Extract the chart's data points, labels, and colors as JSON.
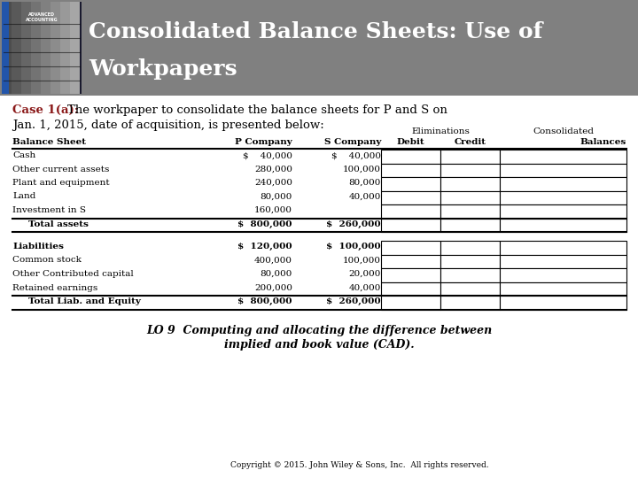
{
  "title_line1": "Consolidated Balance Sheets: Use of",
  "title_line2": "Workpapers",
  "header_bg": "#808080",
  "title_color": "#ffffff",
  "case_label": "Case 1(a):",
  "case_label_color": "#8b1a1a",
  "case_text1": "The workpaper to consolidate the balance sheets for P and S on",
  "case_text2": "Jan. 1, 2015, date of acquisition, is presented below:",
  "col_labels_row1": [
    "",
    "",
    "",
    "Eliminations",
    "",
    "Consolidated"
  ],
  "col_labels_row2": [
    "Balance Sheet",
    "P Company",
    "S Company",
    "Debit",
    "Credit",
    "Balances"
  ],
  "rows_assets": [
    {
      "label": "Cash",
      "bold": false,
      "p": "$    40,000",
      "s": "$    40,000",
      "indent": false
    },
    {
      "label": "Other current assets",
      "bold": false,
      "p": "280,000",
      "s": "100,000",
      "indent": false
    },
    {
      "label": "Plant and equipment",
      "bold": false,
      "p": "240,000",
      "s": "80,000",
      "indent": false
    },
    {
      "label": "Land",
      "bold": false,
      "p": "80,000",
      "s": "40,000",
      "indent": false
    },
    {
      "label": "Investment in S",
      "bold": false,
      "p": "160,000",
      "s": "",
      "indent": false
    },
    {
      "label": "Total assets",
      "bold": true,
      "p": "$  800,000",
      "s": "$  260,000",
      "indent": true
    }
  ],
  "rows_liab": [
    {
      "label": "Liabilities",
      "bold": true,
      "p": "$  120,000",
      "s": "$  100,000",
      "indent": false
    },
    {
      "label": "Common stock",
      "bold": false,
      "p": "400,000",
      "s": "100,000",
      "indent": false
    },
    {
      "label": "Other Contributed capital",
      "bold": false,
      "p": "80,000",
      "s": "20,000",
      "indent": false
    },
    {
      "label": "Retained earnings",
      "bold": false,
      "p": "200,000",
      "s": "40,000",
      "indent": false
    },
    {
      "label": "Total Liab. and Equity",
      "bold": true,
      "p": "$  800,000",
      "s": "$  260,000",
      "indent": true
    }
  ],
  "lo_text_line1": "LO 9  Computing and allocating the difference between",
  "lo_text_line2": "implied and book value (CAD).",
  "copyright": "Copyright © 2015. John Wiley & Sons, Inc.  All rights reserved.",
  "bg_color": "#ffffff"
}
